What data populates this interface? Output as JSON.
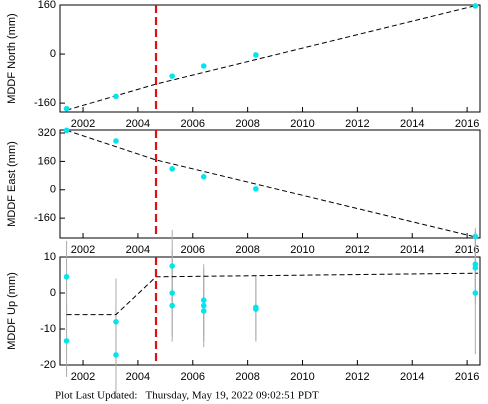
{
  "chart_data": [
    {
      "type": "scatter",
      "ylabel": "MDDF North (mm)",
      "x": [
        2001.4,
        2003.2,
        2005.25,
        2006.4,
        2008.3,
        2016.3
      ],
      "values": [
        -178,
        -138,
        -72,
        -39,
        -3,
        157
      ],
      "color": "#00e5ee",
      "fit": {
        "x": [
          2001.4,
          2004.66,
          2016.4
        ],
        "values": [
          -183,
          -98,
          160
        ],
        "color": "#000000"
      },
      "vline": {
        "x": 2004.66,
        "color": "#dd1111"
      },
      "xlim": [
        2001.16,
        2016.47
      ],
      "xticks": [
        2002,
        2004,
        2006,
        2008,
        2010,
        2012,
        2014,
        2016
      ],
      "ylim": [
        -189,
        160
      ],
      "yticks": [
        -160,
        0,
        160
      ]
    },
    {
      "type": "scatter",
      "ylabel": "MDDF East (mm)",
      "x": [
        2001.4,
        2003.2,
        2005.25,
        2006.4,
        2008.3,
        2016.3
      ],
      "values": [
        335,
        275,
        118,
        73,
        5,
        -264
      ],
      "color": "#00e5ee",
      "fit": {
        "x": [
          2001.4,
          2004.66,
          2016.4
        ],
        "values": [
          335,
          168,
          -270
        ],
        "color": "#000000"
      },
      "vline": {
        "x": 2004.66,
        "color": "#dd1111"
      },
      "xlim": [
        2001.16,
        2016.47
      ],
      "xticks": [
        2002,
        2004,
        2006,
        2008,
        2010,
        2012,
        2014,
        2016
      ],
      "ylim": [
        -272,
        337
      ],
      "yticks": [
        -160,
        0,
        160,
        320
      ]
    },
    {
      "type": "scatter",
      "ylabel": "MDDF Up (mm)",
      "x": [
        2001.4,
        2001.4,
        2003.2,
        2003.2,
        2005.25,
        2005.25,
        2005.25,
        2006.4,
        2006.4,
        2006.4,
        2008.3,
        2008.3,
        2016.3,
        2016.3,
        2016.3
      ],
      "values": [
        4.5,
        -13.3,
        -8,
        -17.2,
        7.5,
        0,
        -3.5,
        -2,
        -3.5,
        -5,
        -4,
        -4.5,
        8,
        7,
        0
      ],
      "errors": [
        10,
        10,
        12,
        12,
        10,
        12,
        10,
        10,
        10,
        10,
        9,
        9,
        10,
        10,
        17
      ],
      "color": "#00e5ee",
      "error_color": "#aaaaaa",
      "fit": {
        "x": [
          2001.4,
          2003.2,
          2004.66,
          2016.4
        ],
        "values": [
          -6,
          -6,
          4.5,
          5.5
        ],
        "color": "#000000"
      },
      "vline": {
        "x": 2004.66,
        "color": "#dd1111"
      },
      "xlim": [
        2001.16,
        2016.47
      ],
      "xticks": [
        2002,
        2004,
        2006,
        2008,
        2010,
        2012,
        2014,
        2016
      ],
      "ylim": [
        -20,
        10
      ],
      "yticks": [
        -20,
        -10,
        0,
        10
      ]
    }
  ],
  "footer": "Plot Last Updated:   Thursday, May 19, 2022 09:02:51 PDT"
}
